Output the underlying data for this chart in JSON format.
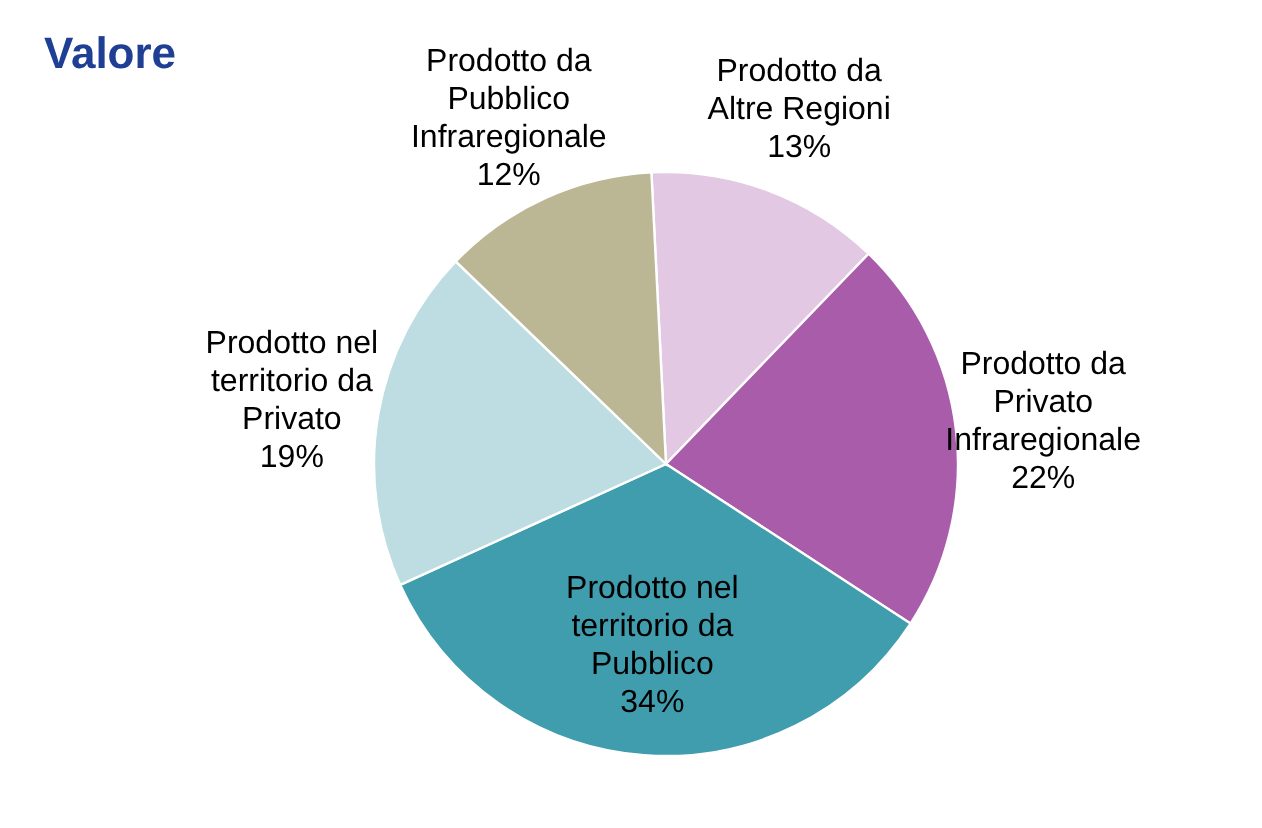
{
  "chart_data": {
    "type": "pie",
    "title": "Valore",
    "categories": [
      "Prodotto da Altre Regioni",
      "Prodotto da Privato Infraregionale",
      "Prodotto nel territorio da Pubblico",
      "Prodotto nel territorio da Privato",
      "Prodotto da Pubblico Infraregionale"
    ],
    "values": [
      13,
      22,
      34,
      19,
      12
    ],
    "value_labels": [
      "13%",
      "22%",
      "34%",
      "19%",
      "12%"
    ],
    "colors": [
      "#e2c8e3",
      "#a85caa",
      "#409dae",
      "#bedde3",
      "#bbb693"
    ]
  }
}
